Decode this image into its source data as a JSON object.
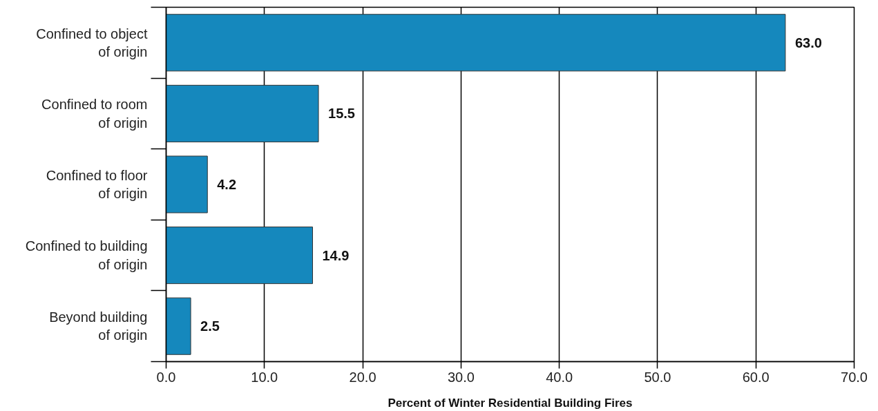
{
  "chart_data": {
    "type": "bar",
    "orientation": "horizontal",
    "categories": [
      "Confined to object of origin",
      "Confined to room of origin",
      "Confined to floor of origin",
      "Confined to building of origin",
      "Beyond building of origin"
    ],
    "values": [
      63.0,
      15.5,
      4.2,
      14.9,
      2.5
    ],
    "color": "#1588bd",
    "xlabel": "Percent of Winter Residential Building Fires",
    "xlim": [
      0,
      70
    ],
    "xticks": [
      {
        "value": 0,
        "label": "0.0"
      },
      {
        "value": 10,
        "label": "10.0"
      },
      {
        "value": 20,
        "label": "20.0"
      },
      {
        "value": 30,
        "label": "30.0"
      },
      {
        "value": 40,
        "label": "40.0"
      },
      {
        "value": 50,
        "label": "50.0"
      },
      {
        "value": 60,
        "label": "60.0"
      },
      {
        "value": 70,
        "label": "70.0"
      }
    ],
    "grid": "x",
    "value_labels": [
      "63.0",
      "15.5",
      "4.2",
      "14.9",
      "2.5"
    ]
  }
}
